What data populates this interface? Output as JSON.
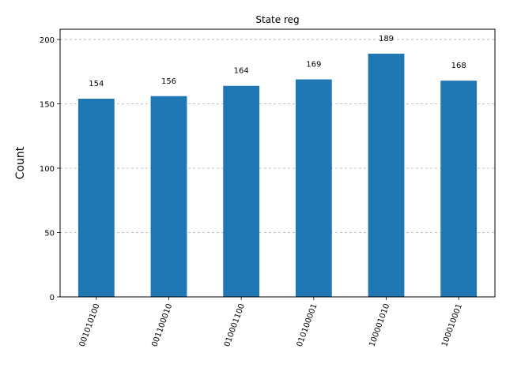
{
  "chart_data": {
    "type": "bar",
    "title": "State reg",
    "xlabel": "",
    "ylabel": "Count",
    "categories": [
      "001010100",
      "001100010",
      "010001100",
      "010100001",
      "100001010",
      "100010001"
    ],
    "values": [
      154,
      156,
      164,
      169,
      189,
      168
    ],
    "ylim": [
      0,
      208
    ],
    "yticks": [
      0,
      50,
      100,
      150,
      200
    ],
    "grid": "y-dashed",
    "bar_color": "#1f77b4",
    "grid_color": "#b0b0b0"
  }
}
